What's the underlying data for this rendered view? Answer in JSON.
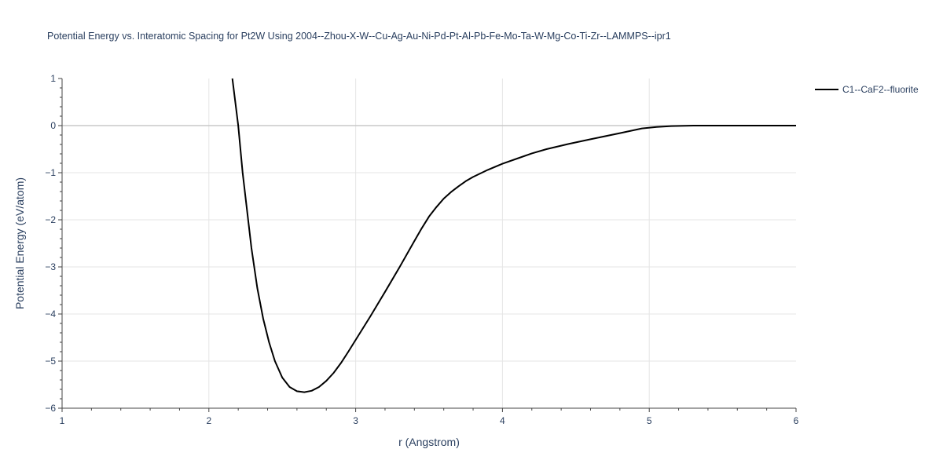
{
  "chart_data": {
    "type": "line",
    "title": "Potential Energy vs. Interatomic Spacing for Pt2W Using 2004--Zhou-X-W--Cu-Ag-Au-Ni-Pd-Pt-Al-Pb-Fe-Mo-Ta-W-Mg-Co-Ti-Zr--LAMMPS--ipr1",
    "xlabel": "r (Angstrom)",
    "ylabel": "Potential Energy (eV/atom)",
    "xlim": [
      1,
      6
    ],
    "ylim": [
      -6,
      1
    ],
    "x_ticks": [
      "1",
      "2",
      "3",
      "4",
      "5",
      "6"
    ],
    "y_ticks": [
      "1",
      "0",
      "−1",
      "−2",
      "−3",
      "−4",
      "−5",
      "−6"
    ],
    "grid": true,
    "legend_position": "top-right",
    "series": [
      {
        "name": "C1--CaF2--fluorite",
        "color": "#000000",
        "x": [
          2.16,
          2.2,
          2.23,
          2.26,
          2.29,
          2.33,
          2.37,
          2.41,
          2.45,
          2.5,
          2.55,
          2.6,
          2.65,
          2.7,
          2.75,
          2.8,
          2.85,
          2.9,
          2.95,
          3.0,
          3.1,
          3.2,
          3.3,
          3.4,
          3.45,
          3.5,
          3.55,
          3.6,
          3.65,
          3.7,
          3.75,
          3.8,
          3.9,
          4.0,
          4.1,
          4.2,
          4.3,
          4.45,
          4.6,
          4.8,
          4.95,
          5.05,
          5.15,
          5.3,
          5.6,
          6.0
        ],
        "y": [
          1.0,
          0.0,
          -1.0,
          -1.8,
          -2.6,
          -3.45,
          -4.1,
          -4.6,
          -5.0,
          -5.35,
          -5.55,
          -5.64,
          -5.66,
          -5.63,
          -5.55,
          -5.42,
          -5.25,
          -5.04,
          -4.8,
          -4.55,
          -4.05,
          -3.53,
          -3.0,
          -2.45,
          -2.18,
          -1.93,
          -1.73,
          -1.55,
          -1.41,
          -1.29,
          -1.18,
          -1.09,
          -0.94,
          -0.81,
          -0.7,
          -0.59,
          -0.5,
          -0.39,
          -0.29,
          -0.16,
          -0.06,
          -0.03,
          -0.01,
          0.0,
          0.0,
          0.0
        ]
      }
    ]
  }
}
